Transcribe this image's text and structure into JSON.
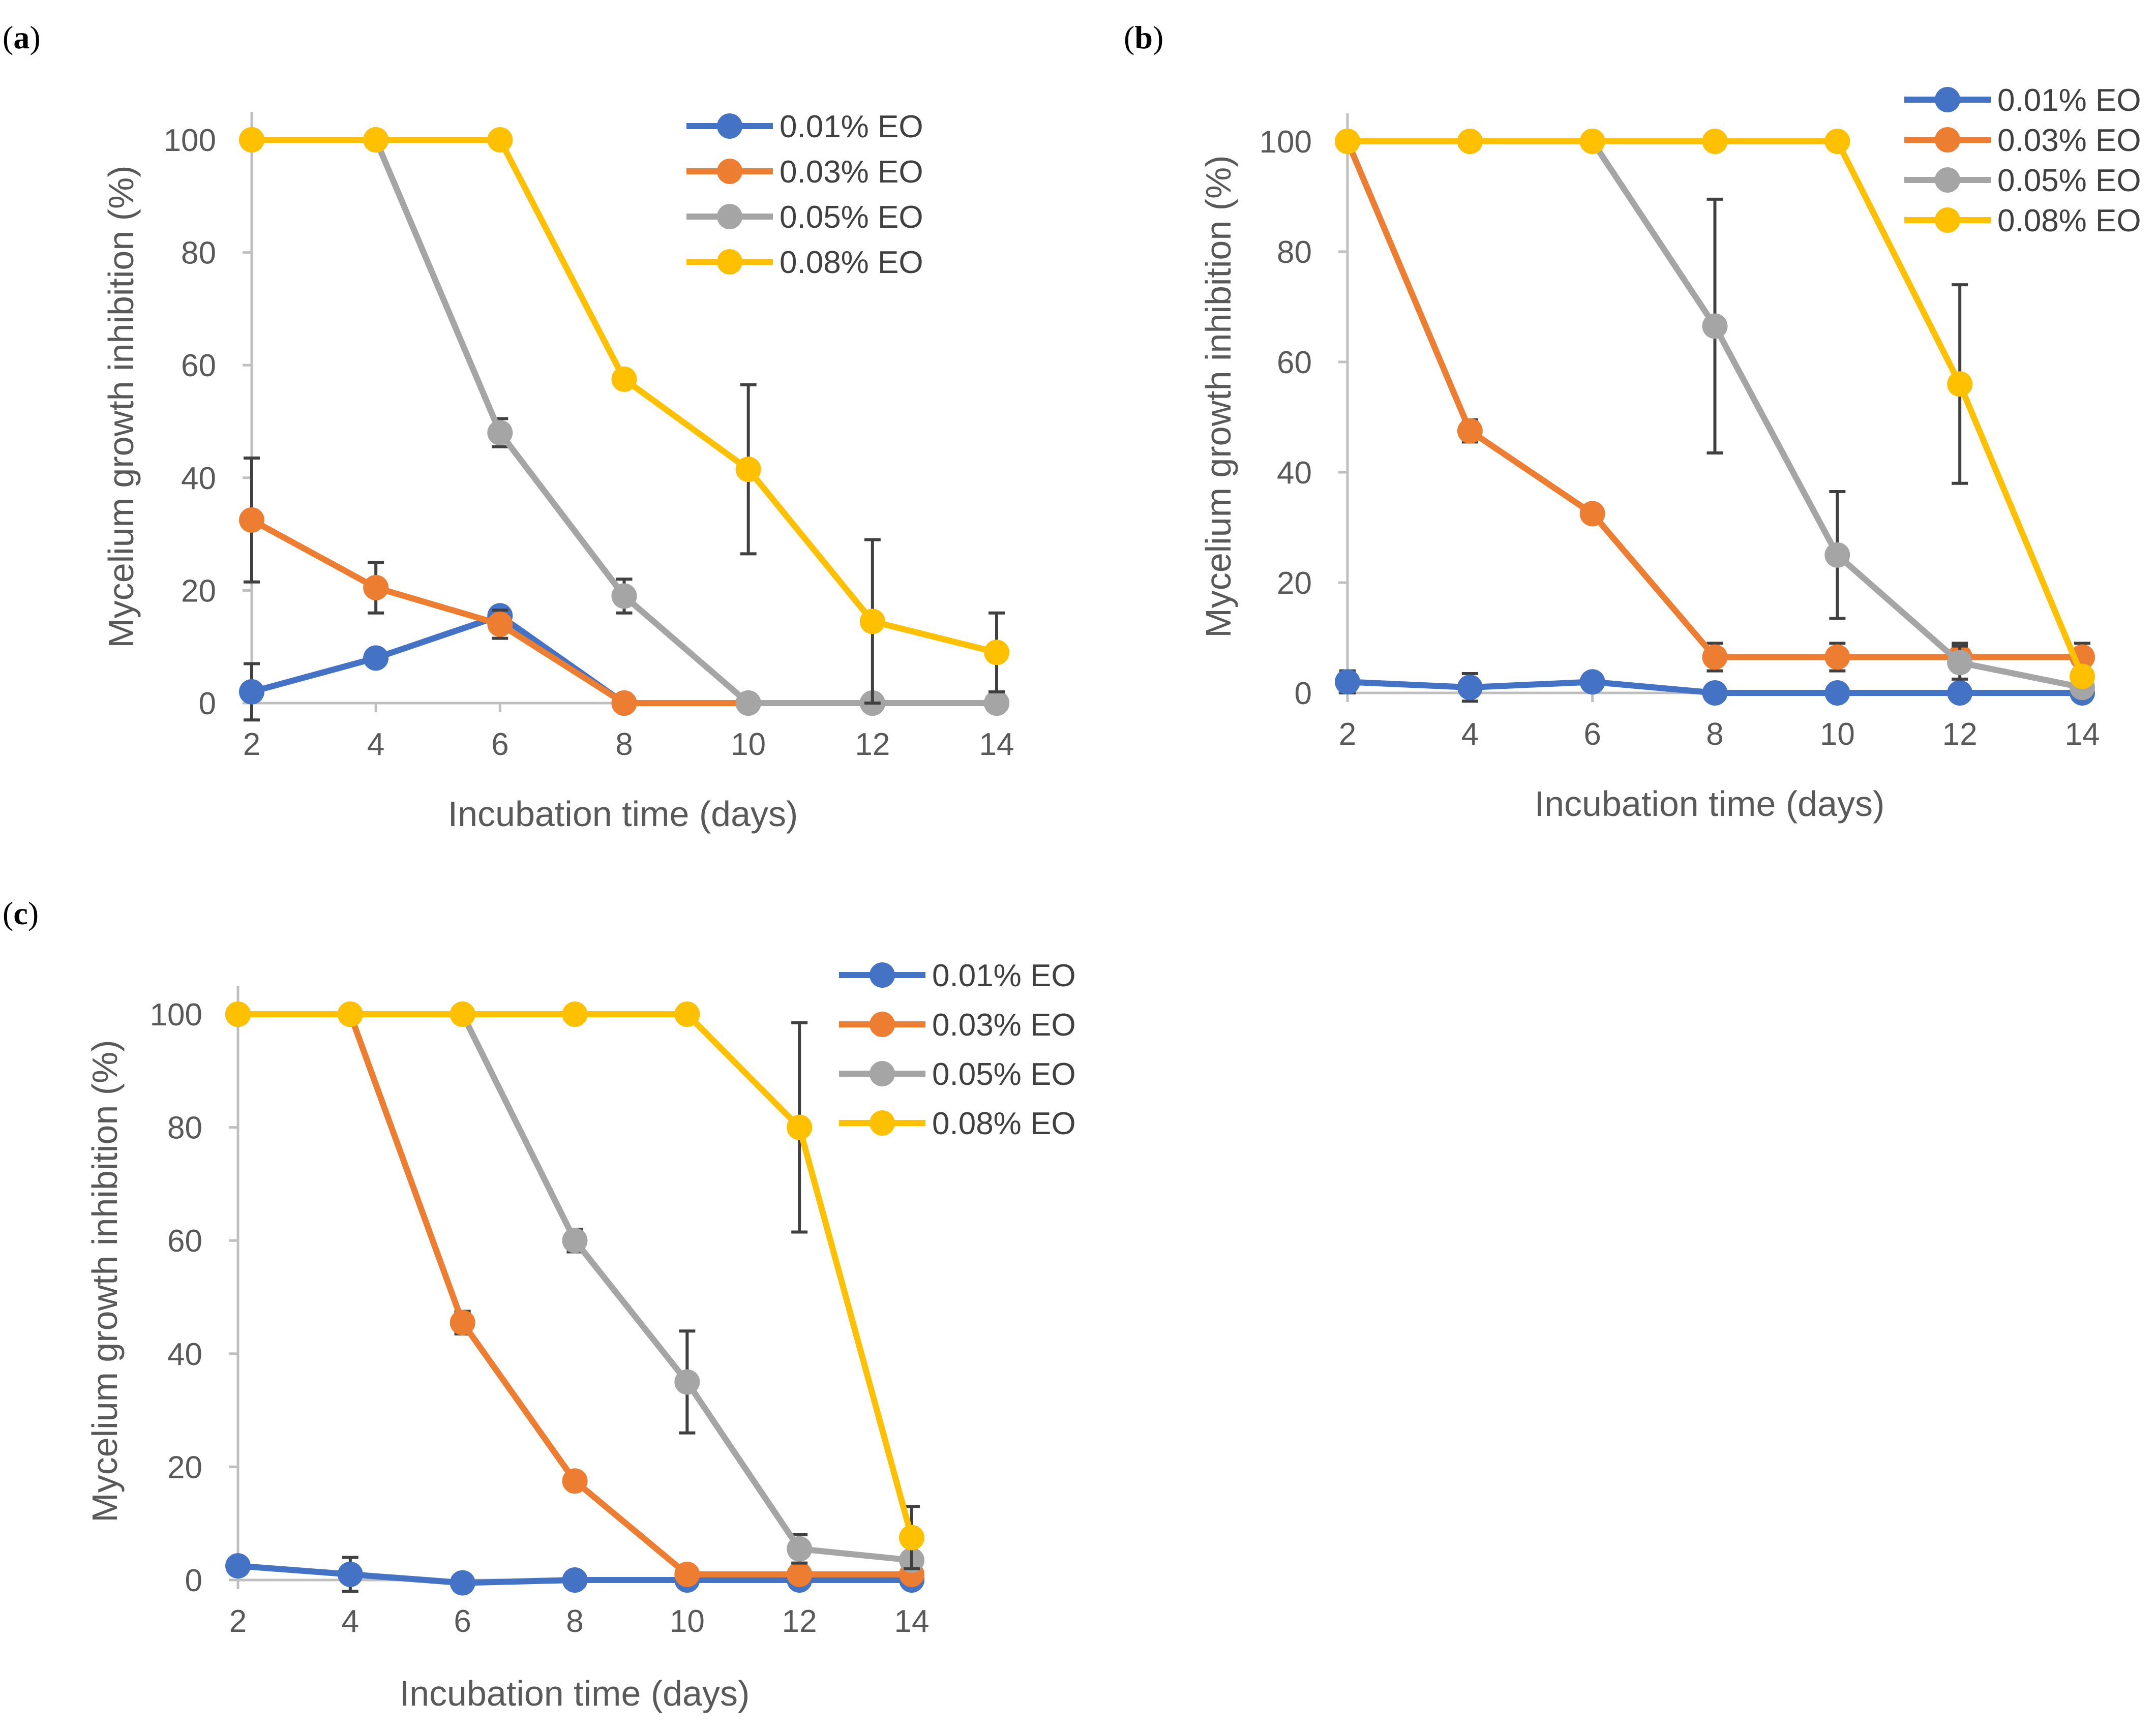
{
  "colors": {
    "0.01% EO": "#4472C4",
    "0.03% EO": "#ED7D31",
    "0.05% EO": "#A5A5A5",
    "0.08% EO": "#FFC000",
    "axis": "#BFBFBF",
    "error_bar": "#404040"
  },
  "chart_data": [
    {
      "panel": "a",
      "type": "line",
      "title": "",
      "xlabel": "Incubation time (days)",
      "ylabel": "Mycelium growth inhibition (%)",
      "x": [
        2,
        4,
        6,
        8,
        10,
        12,
        14
      ],
      "xlim": [
        2,
        14
      ],
      "ylim": [
        0,
        100
      ],
      "yticks": [
        0,
        20,
        40,
        60,
        80,
        100
      ],
      "xticks": [
        2,
        4,
        6,
        8,
        10,
        12,
        14
      ],
      "legend_position": "top-right",
      "series": [
        {
          "name": "0.01% EO",
          "values": [
            2,
            8,
            15.5,
            0,
            0,
            0,
            0
          ],
          "errors": [
            5,
            0,
            0,
            0,
            0,
            0,
            0
          ]
        },
        {
          "name": "0.03% EO",
          "values": [
            32.5,
            20.5,
            14,
            0,
            0,
            0,
            0
          ],
          "errors": [
            11,
            4.5,
            2.5,
            0,
            0,
            0,
            0
          ]
        },
        {
          "name": "0.05% EO",
          "values": [
            100,
            100,
            48,
            19,
            0,
            0,
            0
          ],
          "errors": [
            0,
            0,
            2.5,
            3,
            0,
            0,
            0
          ]
        },
        {
          "name": "0.08% EO",
          "values": [
            100,
            100,
            100,
            57.5,
            41.5,
            14.5,
            9
          ],
          "errors": [
            0,
            0,
            0,
            0,
            15,
            14.5,
            7
          ]
        }
      ]
    },
    {
      "panel": "b",
      "type": "line",
      "title": "",
      "xlabel": "Incubation time (days)",
      "ylabel": "Mycelium growth inhibition (%)",
      "x": [
        2,
        4,
        6,
        8,
        10,
        12,
        14
      ],
      "xlim": [
        2,
        14
      ],
      "ylim": [
        0,
        100
      ],
      "yticks": [
        0,
        20,
        40,
        60,
        80,
        100
      ],
      "xticks": [
        2,
        4,
        6,
        8,
        10,
        12,
        14
      ],
      "legend_position": "top-right",
      "series": [
        {
          "name": "0.01% EO",
          "values": [
            2,
            1,
            2,
            0,
            0,
            0,
            0
          ],
          "errors": [
            2,
            2.5,
            0,
            0,
            0,
            0,
            0
          ]
        },
        {
          "name": "0.03% EO",
          "values": [
            100,
            47.5,
            32.5,
            6.5,
            6.5,
            6.5,
            6.5
          ],
          "errors": [
            0,
            2,
            0,
            2.5,
            2.5,
            2.5,
            2.5
          ]
        },
        {
          "name": "0.05% EO",
          "values": [
            100,
            100,
            100,
            66.5,
            25,
            5.5,
            1
          ],
          "errors": [
            0,
            0,
            0,
            23,
            11.5,
            3,
            0
          ]
        },
        {
          "name": "0.08% EO",
          "values": [
            100,
            100,
            100,
            100,
            100,
            56,
            3
          ],
          "errors": [
            0,
            0,
            0,
            0,
            0,
            18,
            0
          ]
        }
      ]
    },
    {
      "panel": "c",
      "type": "line",
      "title": "",
      "xlabel": "Incubation time (days)",
      "ylabel": "Mycelium growth inhibition (%)",
      "x": [
        2,
        4,
        6,
        8,
        10,
        12,
        14
      ],
      "xlim": [
        2,
        14
      ],
      "ylim": [
        0,
        100
      ],
      "yticks": [
        0,
        20,
        40,
        60,
        80,
        100
      ],
      "xticks": [
        2,
        4,
        6,
        8,
        10,
        12,
        14
      ],
      "legend_position": "top-right",
      "series": [
        {
          "name": "0.01% EO",
          "values": [
            2.5,
            1,
            -0.5,
            0,
            0,
            0,
            0
          ],
          "errors": [
            0,
            3,
            0,
            0,
            0,
            0,
            0
          ]
        },
        {
          "name": "0.03% EO",
          "values": [
            100,
            100,
            45.5,
            17.5,
            1,
            1,
            1
          ],
          "errors": [
            0,
            0,
            2,
            1,
            0,
            0,
            0
          ]
        },
        {
          "name": "0.05% EO",
          "values": [
            100,
            100,
            100,
            60,
            35,
            5.5,
            3.5
          ],
          "errors": [
            0,
            0,
            0,
            2,
            9,
            2.5,
            0
          ]
        },
        {
          "name": "0.08% EO",
          "values": [
            100,
            100,
            100,
            100,
            100,
            80,
            7.5
          ],
          "errors": [
            0,
            0,
            0,
            0,
            0,
            18.5,
            5.5
          ]
        }
      ]
    }
  ]
}
